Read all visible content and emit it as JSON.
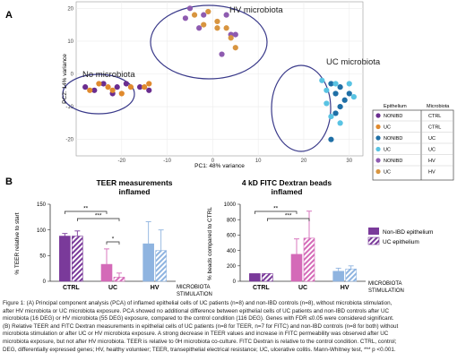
{
  "panel_a": {
    "letter": "A",
    "xlabel": "PC1: 48% variance",
    "ylabel": "PC2: 14% variance",
    "cluster_labels": [
      "No microbiota",
      "HV microbiota",
      "UC microbiota"
    ],
    "legend": {
      "header_epithelium": "Epithelium",
      "header_microbiota": "Microbiota",
      "rows": [
        {
          "epithelium": "NONIBD",
          "microbiota": "CTRL",
          "color": "#6a2d8f"
        },
        {
          "epithelium": "UC",
          "microbiota": "CTRL",
          "color": "#e08a2e"
        },
        {
          "epithelium": "NONIBD",
          "microbiota": "UC",
          "color": "#1f6fa6"
        },
        {
          "epithelium": "UC",
          "microbiota": "UC",
          "color": "#59c3e3"
        },
        {
          "epithelium": "NONIBD",
          "microbiota": "HV",
          "color": "#8e5bb0"
        },
        {
          "epithelium": "UC",
          "microbiota": "HV",
          "color": "#d89540"
        }
      ]
    }
  },
  "panel_b": {
    "letter": "B",
    "teer_title": "TEER measurements inflamed",
    "teer_ylabel": "% TEER relative to start",
    "fitc_title": "4 kD FITC Dextran beads inflamed",
    "fitc_ylabel": "% beads compared to CTRL",
    "axis_footer_1": "MICROBIOTA",
    "axis_footer_2": "STIMULATION",
    "legend_nonibd": "Non-IBD epithelium",
    "legend_uc": "UC epithelium",
    "sig": {
      "teer": [
        "**",
        "***",
        "*"
      ],
      "fitc": [
        "**",
        "***"
      ]
    }
  },
  "chart_data": [
    {
      "type": "scatter",
      "title": "",
      "xlabel": "PC1: 48% variance",
      "ylabel": "PC2: 14% variance",
      "xlim": [
        -30,
        33
      ],
      "ylim": [
        -25,
        22
      ],
      "xticks": [
        -20,
        -10,
        0,
        10,
        20,
        30
      ],
      "yticks": [
        -20,
        -10,
        0,
        10,
        20
      ],
      "series": [
        {
          "name": "NONIBD / CTRL",
          "color": "#6a2d8f",
          "points": [
            [
              -28,
              -4
            ],
            [
              -26,
              -5
            ],
            [
              -24,
              -3
            ],
            [
              -22,
              -6
            ],
            [
              -21,
              -4
            ],
            [
              -19,
              -3
            ],
            [
              -16,
              -4
            ],
            [
              -14,
              -5
            ]
          ]
        },
        {
          "name": "UC / CTRL",
          "color": "#e08a2e",
          "points": [
            [
              -27,
              -5
            ],
            [
              -25,
              -3
            ],
            [
              -23,
              -4
            ],
            [
              -22,
              -5
            ],
            [
              -20,
              -6
            ],
            [
              -18,
              -4
            ],
            [
              -15,
              -4
            ],
            [
              -14,
              -3
            ]
          ]
        },
        {
          "name": "NONIBD / UC",
          "color": "#1f6fa6",
          "points": [
            [
              26,
              -3
            ],
            [
              27,
              -6
            ],
            [
              28,
              -4
            ],
            [
              29,
              -8
            ],
            [
              30,
              -6
            ],
            [
              28,
              -10
            ],
            [
              27,
              -12
            ],
            [
              26,
              -20
            ]
          ]
        },
        {
          "name": "UC / UC",
          "color": "#59c3e3",
          "points": [
            [
              24,
              -2
            ],
            [
              25,
              -5
            ],
            [
              25,
              -9
            ],
            [
              27,
              -3
            ],
            [
              30,
              -3
            ],
            [
              31,
              -7
            ],
            [
              28,
              -15
            ],
            [
              26,
              -13
            ]
          ]
        },
        {
          "name": "NONIBD / HV",
          "color": "#8e5bb0",
          "points": [
            [
              -5,
              20
            ],
            [
              -2,
              18
            ],
            [
              -3,
              14
            ],
            [
              4,
              12
            ],
            [
              5,
              12
            ],
            [
              2,
              6
            ],
            [
              3,
              18
            ],
            [
              -6,
              17
            ]
          ]
        },
        {
          "name": "UC / HV",
          "color": "#d89540",
          "points": [
            [
              -4,
              18
            ],
            [
              -1,
              19
            ],
            [
              1,
              14
            ],
            [
              3,
              14
            ],
            [
              4,
              11
            ],
            [
              5,
              8
            ],
            [
              1,
              16
            ],
            [
              -2,
              15
            ]
          ]
        }
      ]
    },
    {
      "type": "bar",
      "title": "TEER measurements inflamed",
      "ylabel": "% TEER relative to start",
      "xlabel": "MICROBIOTA STIMULATION",
      "categories": [
        "CTRL",
        "UC",
        "HV"
      ],
      "ylim": [
        0,
        150
      ],
      "yticks": [
        0,
        50,
        100,
        150
      ],
      "series": [
        {
          "name": "Non-IBD epithelium",
          "values": [
            88,
            33,
            73
          ],
          "errors": [
            5,
            30,
            43
          ]
        },
        {
          "name": "UC epithelium",
          "values": [
            88,
            8,
            60
          ],
          "errors": [
            10,
            8,
            40
          ]
        }
      ]
    },
    {
      "type": "bar",
      "title": "4 kD FITC Dextran beads inflamed",
      "ylabel": "% beads compared to CTRL",
      "xlabel": "MICROBIOTA STIMULATION",
      "categories": [
        "CTRL",
        "UC",
        "HV"
      ],
      "ylim": [
        0,
        1000
      ],
      "yticks": [
        0,
        200,
        400,
        600,
        800,
        1000
      ],
      "series": [
        {
          "name": "Non-IBD epithelium",
          "values": [
            100,
            350,
            130
          ],
          "errors": [
            0,
            200,
            40
          ]
        },
        {
          "name": "UC epithelium",
          "values": [
            100,
            560,
            160
          ],
          "errors": [
            0,
            350,
            40
          ]
        }
      ]
    }
  ],
  "caption": [
    "Figure 1: (A) Principal component analysis (PCA) of inflamed epithelial cells of UC patients (n=8) and non-IBD controls (n=8), without microbiota stimulation,",
    "after HV microbiota or UC microbiota exposure. PCA showed no additional difference between epithelial cells of UC patients and non-IBD controls after UC",
    "microbiota (16 DEG) or HV microbiota (55 DEG) exposure, compared to the control condition (116 DEG). Genes with FDR ≤0.05 were considered significant.",
    "(B) Relative TEER and FITC Dextran measurements in epithelial cells of UC patients (n=8 for TEER, n=7 for FITC) and non-IBD controls (n=8 for both) without",
    "microbiota stimulation or after UC or HV microbiota exposure. A strong decrease in TEER values and increase in FITC permeability was observed after UC",
    "microbiota exposure, but not after HV microbiota. TEER is relative to 0H microbiota co-culture. FITC Dextran is relative to the control condition. CTRL, control;",
    "DEG, differentially expressed genes; HV, healthy volunteer; TEER, transepithelial electrical resistance; UC, ulcerative colitis. Mann-Whitney test, *** p <0.001."
  ]
}
